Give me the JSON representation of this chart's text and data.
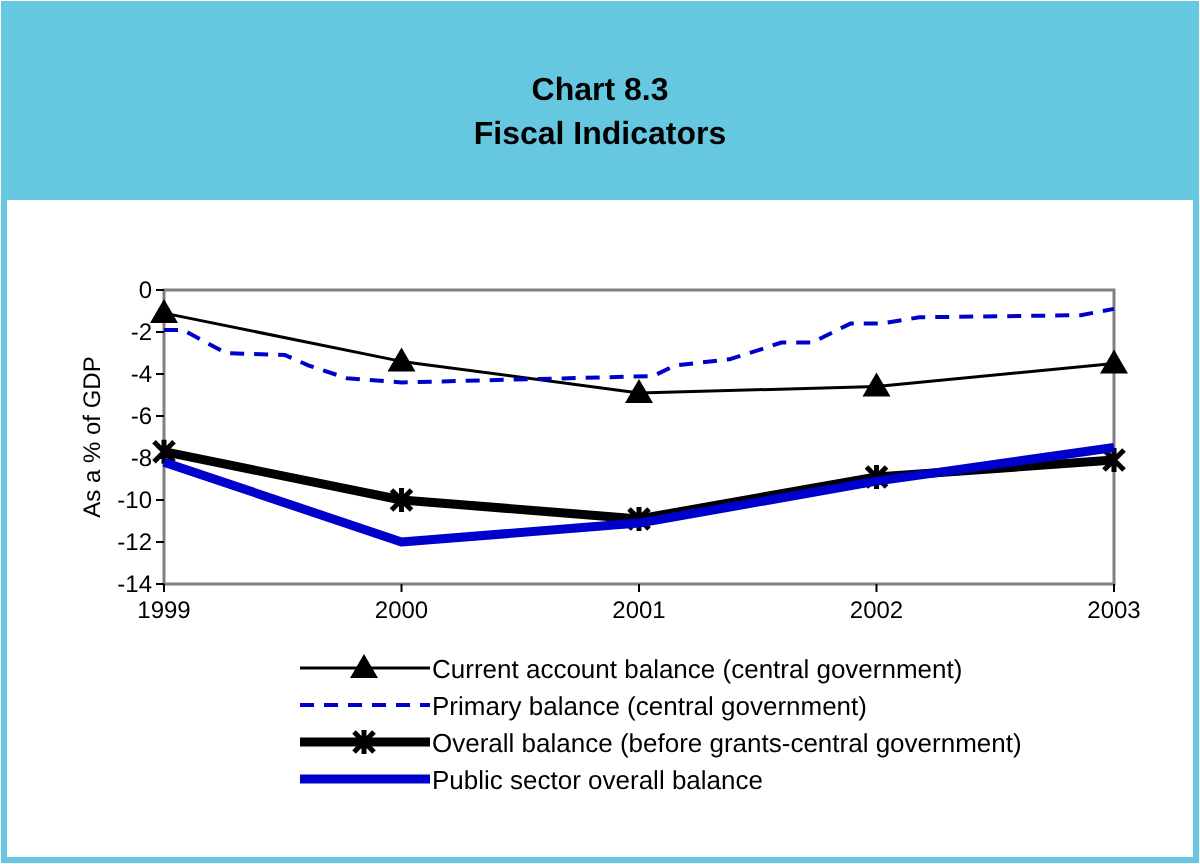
{
  "chart_data": {
    "type": "line",
    "title": "Chart  8.3\nFiscal Indicators",
    "ylabel": "As a % of GDP",
    "xlim": [
      1999,
      2003
    ],
    "xticks": [
      1999,
      2000,
      2001,
      2002,
      2003
    ],
    "ylim": [
      -14,
      0
    ],
    "yticks": [
      -14,
      -12,
      -10,
      -8,
      -6,
      -4,
      -2,
      0
    ],
    "grid": false,
    "legend": "bottom",
    "x": [
      1999,
      2000,
      2001,
      2002,
      2003
    ],
    "series": [
      {
        "name": "Current account balance (central government)",
        "color": "#000000",
        "values": [
          -1.1,
          -3.4,
          -4.9,
          -4.6,
          -3.5
        ],
        "marker": "triangle",
        "line_style": "solid"
      },
      {
        "name": "Primary balance (central government)",
        "color": "#0000cc",
        "x": [
          1999,
          1999.08,
          1999.26,
          1999.51,
          1999.61,
          1999.77,
          2000,
          2001.06,
          2001.15,
          2001.38,
          2001.52,
          2001.6,
          2001.73,
          2001.89,
          2002.02,
          2002.18,
          2002.86,
          2003
        ],
        "values": [
          -1.9,
          -1.9,
          -3.0,
          -3.1,
          -3.6,
          -4.2,
          -4.4,
          -4.1,
          -3.6,
          -3.3,
          -2.8,
          -2.5,
          -2.5,
          -1.6,
          -1.6,
          -1.3,
          -1.2,
          -0.9
        ],
        "marker": "none",
        "line_style": "dashed"
      },
      {
        "name": "Overall balance (before grants-central government)",
        "color": "#000000",
        "values": [
          -7.7,
          -10,
          -10.9,
          -8.9,
          -8.1
        ],
        "marker": "cross",
        "line_style": "solid"
      },
      {
        "name": "Public sector overall balance",
        "color": "#0000cc",
        "values": [
          -8.2,
          -12,
          -11.1,
          -9.1,
          -7.5
        ],
        "marker": "none",
        "line_style": "solid"
      }
    ]
  }
}
